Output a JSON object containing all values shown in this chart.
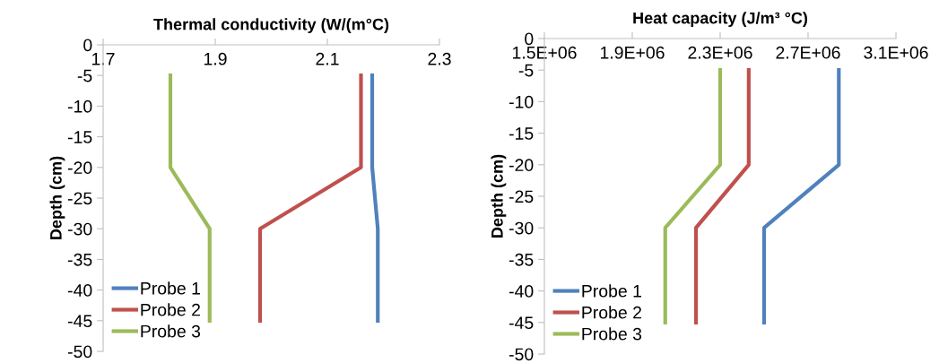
{
  "chart_data": [
    {
      "type": "line",
      "title": "Thermal conductivity (W/(m°C)",
      "ylabel": "Depth (cm)",
      "xlim": [
        1.7,
        2.3
      ],
      "xticks": [
        1.7,
        1.9,
        2.1,
        2.3
      ],
      "ylim": [
        -50,
        0
      ],
      "yticks": [
        0,
        -5,
        -10,
        -15,
        -20,
        -25,
        -30,
        -35,
        -40,
        -45,
        -50
      ],
      "grid": false,
      "legend": "bottom left",
      "marker": "none",
      "line_style": "solid",
      "series": [
        {
          "name": "Probe 1",
          "color": "#4f81bd",
          "x": [
            2.18,
            2.18,
            2.19,
            2.19
          ],
          "values": [
            -5,
            -20,
            -30,
            -45
          ]
        },
        {
          "name": "Probe 2",
          "color": "#c0504d",
          "x": [
            2.16,
            2.16,
            1.98,
            1.98
          ],
          "values": [
            -5,
            -20,
            -30,
            -45
          ]
        },
        {
          "name": "Probe 3",
          "color": "#9bbb59",
          "x": [
            1.82,
            1.82,
            1.89,
            1.89
          ],
          "values": [
            -5,
            -20,
            -30,
            -45
          ]
        }
      ]
    },
    {
      "type": "line",
      "title": "Heat capacity (J/m³ °C)",
      "ylabel": "Depth (cm)",
      "xlim": [
        1500000,
        3100000
      ],
      "xticks": [
        {
          "value": 1500000,
          "label": "1.5E+06"
        },
        {
          "value": 1900000,
          "label": "1.9E+06"
        },
        {
          "value": 2300000,
          "label": "2.3E+06"
        },
        {
          "value": 2700000,
          "label": "2.7E+06"
        },
        {
          "value": 3100000,
          "label": "3.1E+06"
        }
      ],
      "ylim": [
        -50,
        0
      ],
      "yticks": [
        0,
        -5,
        -10,
        -15,
        -20,
        -25,
        -30,
        -35,
        -40,
        -45,
        -50
      ],
      "grid": false,
      "legend": "bottom left",
      "marker": "none",
      "line_style": "solid",
      "series": [
        {
          "name": "Probe 1",
          "color": "#4f81bd",
          "x": [
            2840000,
            2840000,
            2500000,
            2500000
          ],
          "values": [
            -5,
            -20,
            -30,
            -45
          ]
        },
        {
          "name": "Probe 2",
          "color": "#c0504d",
          "x": [
            2430000,
            2430000,
            2190000,
            2190000
          ],
          "values": [
            -5,
            -20,
            -30,
            -45
          ]
        },
        {
          "name": "Probe 3",
          "color": "#9bbb59",
          "x": [
            2300000,
            2300000,
            2050000,
            2050000
          ],
          "values": [
            -5,
            -20,
            -30,
            -45
          ]
        }
      ]
    }
  ]
}
